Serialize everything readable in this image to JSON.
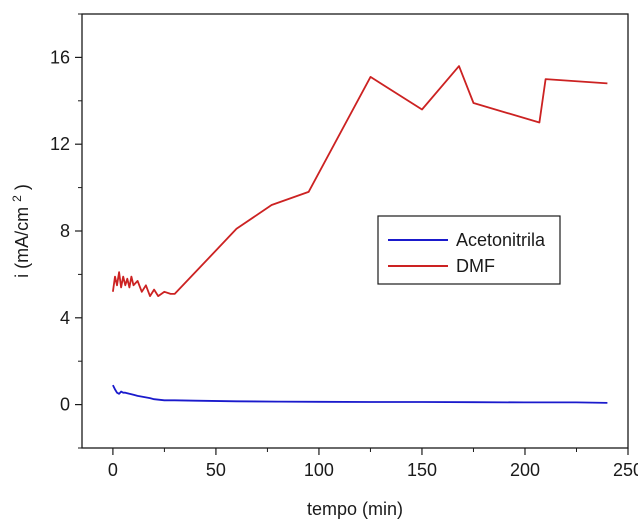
{
  "chart_data": {
    "type": "line",
    "xlabel": "tempo (min)",
    "ylabel_main": "i (mA/cm",
    "ylabel_sup": "2",
    "ylabel_close": ")",
    "xlim": [
      -15,
      250
    ],
    "ylim": [
      -2,
      18
    ],
    "xticks": [
      0,
      50,
      100,
      150,
      200,
      250
    ],
    "yticks": [
      0,
      4,
      8,
      12,
      16
    ],
    "grid": false,
    "legend_position": "center-right",
    "series": [
      {
        "name": "Acetonitrila",
        "color": "#1a1acc",
        "x": [
          0,
          1,
          2,
          3,
          4,
          5,
          6,
          8,
          10,
          12,
          15,
          18,
          20,
          25,
          30,
          40,
          60,
          80,
          100,
          125,
          150,
          175,
          200,
          225,
          240
        ],
        "y": [
          0.9,
          0.7,
          0.55,
          0.5,
          0.6,
          0.55,
          0.55,
          0.5,
          0.45,
          0.4,
          0.35,
          0.3,
          0.25,
          0.2,
          0.2,
          0.18,
          0.15,
          0.14,
          0.13,
          0.12,
          0.12,
          0.11,
          0.1,
          0.1,
          0.08
        ]
      },
      {
        "name": "DMF",
        "color": "#cc2222",
        "x": [
          0,
          1,
          2,
          3,
          4,
          5,
          6,
          7,
          8,
          9,
          10,
          12,
          14,
          16,
          18,
          20,
          22,
          25,
          28,
          30,
          45,
          60,
          77,
          95,
          125,
          150,
          168,
          175,
          207,
          210,
          240
        ],
        "y": [
          5.2,
          5.9,
          5.5,
          6.1,
          5.4,
          5.9,
          5.5,
          5.8,
          5.4,
          5.9,
          5.5,
          5.7,
          5.2,
          5.5,
          5.0,
          5.3,
          5.0,
          5.2,
          5.1,
          5.1,
          6.6,
          8.1,
          9.2,
          9.8,
          15.1,
          13.6,
          15.6,
          13.9,
          13.0,
          15.0,
          14.8
        ]
      }
    ]
  }
}
